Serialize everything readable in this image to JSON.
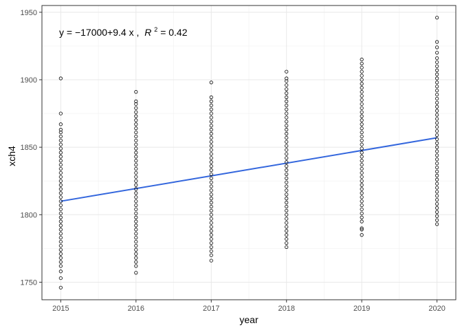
{
  "chart_data": {
    "type": "scatter",
    "xlabel": "year",
    "ylabel": "xch4",
    "xlim": [
      2014.75,
      2020.25
    ],
    "ylim": [
      1737,
      1955
    ],
    "x_ticks": [
      2015,
      2016,
      2017,
      2018,
      2019,
      2020
    ],
    "y_ticks": [
      1750,
      1800,
      1850,
      1900,
      1950
    ],
    "grid": true,
    "annotation": {
      "prefix": "y = −17000+9.4 x ,",
      "r_label": "R",
      "r_exp": "2",
      "r_value": " = 0.42"
    },
    "fit": {
      "x": [
        2015,
        2020
      ],
      "y": [
        1810,
        1857
      ],
      "color": "#3366dd"
    },
    "points": [
      {
        "x": 2015,
        "y": [
          1746,
          1753,
          1758,
          1762,
          1765,
          1768,
          1771,
          1774,
          1777,
          1780,
          1783,
          1786,
          1789,
          1792,
          1795,
          1798,
          1801,
          1804,
          1807,
          1810,
          1813,
          1816,
          1819,
          1822,
          1825,
          1828,
          1831,
          1834,
          1837,
          1840,
          1843,
          1846,
          1849,
          1852,
          1855,
          1858,
          1861,
          1863,
          1867,
          1875,
          1901
        ]
      },
      {
        "x": 2016,
        "y": [
          1757,
          1762,
          1765,
          1768,
          1771,
          1774,
          1777,
          1780,
          1783,
          1786,
          1789,
          1792,
          1795,
          1798,
          1801,
          1804,
          1807,
          1810,
          1813,
          1816,
          1819,
          1822,
          1825,
          1828,
          1831,
          1834,
          1837,
          1840,
          1843,
          1846,
          1849,
          1852,
          1855,
          1858,
          1861,
          1864,
          1867,
          1870,
          1873,
          1876,
          1879,
          1882,
          1884,
          1891
        ]
      },
      {
        "x": 2017,
        "y": [
          1766,
          1770,
          1773,
          1776,
          1779,
          1782,
          1785,
          1788,
          1791,
          1794,
          1797,
          1800,
          1803,
          1806,
          1809,
          1812,
          1815,
          1818,
          1821,
          1824,
          1827,
          1830,
          1833,
          1836,
          1839,
          1842,
          1845,
          1848,
          1851,
          1854,
          1857,
          1860,
          1863,
          1866,
          1869,
          1872,
          1875,
          1878,
          1881,
          1884,
          1887,
          1898
        ]
      },
      {
        "x": 2018,
        "y": [
          1776,
          1779,
          1782,
          1785,
          1788,
          1791,
          1794,
          1797,
          1800,
          1803,
          1806,
          1809,
          1812,
          1815,
          1818,
          1821,
          1824,
          1827,
          1830,
          1833,
          1836,
          1839,
          1842,
          1845,
          1848,
          1851,
          1854,
          1857,
          1860,
          1863,
          1866,
          1869,
          1872,
          1875,
          1878,
          1881,
          1884,
          1887,
          1890,
          1893,
          1896,
          1899,
          1901,
          1906
        ]
      },
      {
        "x": 2019,
        "y": [
          1785,
          1789,
          1790,
          1795,
          1798,
          1801,
          1804,
          1807,
          1810,
          1813,
          1816,
          1819,
          1822,
          1825,
          1828,
          1831,
          1834,
          1837,
          1840,
          1843,
          1846,
          1849,
          1852,
          1855,
          1858,
          1861,
          1864,
          1867,
          1870,
          1873,
          1876,
          1879,
          1882,
          1885,
          1888,
          1891,
          1894,
          1897,
          1900,
          1903,
          1906,
          1909,
          1912,
          1915
        ]
      },
      {
        "x": 2020,
        "y": [
          1793,
          1796,
          1799,
          1802,
          1805,
          1808,
          1811,
          1814,
          1817,
          1820,
          1823,
          1826,
          1829,
          1832,
          1835,
          1838,
          1841,
          1844,
          1847,
          1850,
          1853,
          1856,
          1859,
          1862,
          1865,
          1868,
          1871,
          1874,
          1877,
          1880,
          1883,
          1886,
          1889,
          1892,
          1895,
          1898,
          1901,
          1904,
          1907,
          1910,
          1913,
          1916,
          1920,
          1924,
          1928,
          1946
        ]
      }
    ]
  }
}
